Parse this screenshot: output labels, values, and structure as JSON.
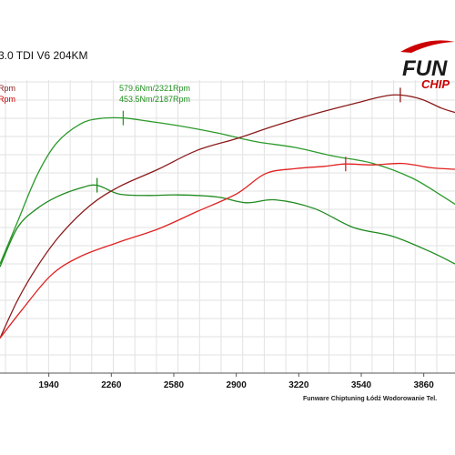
{
  "chart_data": {
    "type": "line",
    "title": "3.0 TDI V6 204KM",
    "legend_left": [
      "Rpm",
      "Rpm"
    ],
    "annotations": [
      "579.6Nm/2321Rpm",
      "453.5Nm/2187Rpm"
    ],
    "x_ticks": [
      "1940",
      "2260",
      "2580",
      "2900",
      "3220",
      "3540",
      "3860"
    ],
    "xlim": [
      1690,
      4020
    ],
    "ylim": [
      0,
      100
    ],
    "grid": true,
    "colors": {
      "torque_tuned": "#2a9a2a",
      "torque_stock": "#1e8a1e",
      "power_tuned": "#8b1a1a",
      "power_stock": "#e02020"
    },
    "series": [
      {
        "key": "torque_tuned",
        "x": [
          1690,
          1780,
          1880,
          1980,
          2100,
          2200,
          2321,
          2450,
          2600,
          2800,
          3000,
          3200,
          3400,
          3600,
          3800,
          3950,
          4020
        ],
        "y": [
          37.5,
          52,
          68,
          79,
          85.5,
          87.4,
          87.6,
          86.5,
          85,
          82.5,
          79.5,
          77.5,
          74.5,
          72,
          67,
          61,
          58
        ]
      },
      {
        "key": "torque_stock",
        "x": [
          1690,
          1780,
          1880,
          1980,
          2100,
          2187,
          2300,
          2450,
          2600,
          2800,
          2950,
          3100,
          3300,
          3500,
          3700,
          3900,
          4020
        ],
        "y": [
          36.5,
          50,
          56.5,
          60.5,
          63.5,
          64.5,
          61.5,
          61,
          61.2,
          60.5,
          58.5,
          59.5,
          56.5,
          50,
          47,
          41.5,
          37.5
        ]
      },
      {
        "key": "power_tuned",
        "x": [
          1690,
          1780,
          1880,
          2000,
          2150,
          2300,
          2500,
          2700,
          2900,
          3100,
          3300,
          3500,
          3650,
          3740,
          3850,
          3950,
          4020
        ],
        "y": [
          12,
          25,
          36.5,
          47.5,
          57.5,
          64,
          70,
          76.5,
          80.5,
          85,
          89,
          92.5,
          95,
          95.5,
          94,
          91,
          89.5
        ]
      },
      {
        "key": "power_stock",
        "x": [
          1690,
          1800,
          1950,
          2100,
          2300,
          2500,
          2700,
          2900,
          3050,
          3200,
          3350,
          3460,
          3600,
          3750,
          3900,
          4020
        ],
        "y": [
          12,
          21.5,
          33.5,
          40,
          45,
          49.5,
          55.5,
          61.5,
          68.5,
          70.2,
          71,
          71.8,
          71.5,
          72,
          70.5,
          70
        ]
      }
    ],
    "peak_markers": [
      {
        "series": "torque_tuned",
        "x": 2321,
        "y": 87.6
      },
      {
        "series": "torque_stock",
        "x": 2187,
        "y": 64.5
      },
      {
        "series": "power_tuned",
        "x": 3740,
        "y": 95.5
      },
      {
        "series": "power_stock",
        "x": 3460,
        "y": 71.8
      }
    ]
  },
  "footer": "Funware Chiptuning Łódź Wodorowanie Tel.",
  "logo": {
    "main": "FUN",
    "sub": "CHIP"
  }
}
